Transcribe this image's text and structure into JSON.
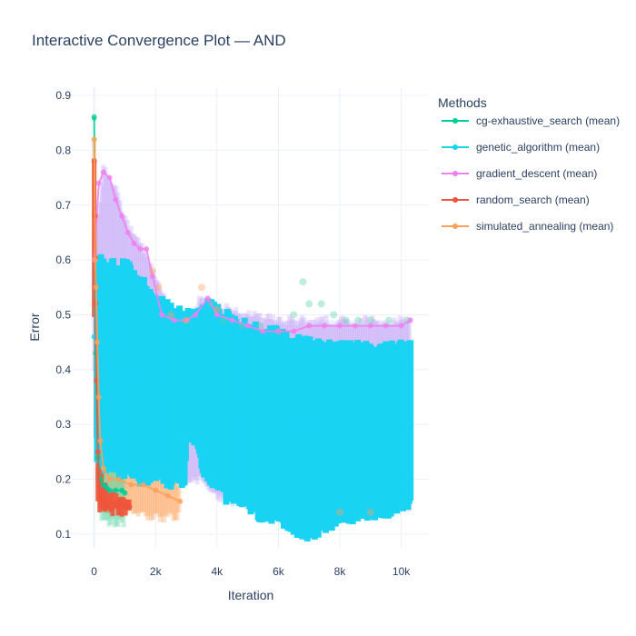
{
  "chart_data": {
    "type": "line",
    "title": "Interactive Convergence Plot — AND",
    "xlabel": "Iteration",
    "ylabel": "Error",
    "xlim": [
      -700,
      10900
    ],
    "ylim": [
      0.075,
      0.915
    ],
    "x_ticks": [
      0,
      2000,
      4000,
      6000,
      8000,
      10000
    ],
    "x_tick_labels": [
      "0",
      "2k",
      "4k",
      "6k",
      "8k",
      "10k"
    ],
    "y_ticks": [
      0.1,
      0.2,
      0.3,
      0.4,
      0.5,
      0.6,
      0.7,
      0.8,
      0.9
    ],
    "y_tick_labels": [
      "0.1",
      "0.2",
      "0.3",
      "0.4",
      "0.5",
      "0.6",
      "0.7",
      "0.8",
      "0.9"
    ],
    "grid": true,
    "legend_title": "Methods",
    "legend_position": "right",
    "series": [
      {
        "name": "cg-exhaustive_search (mean)",
        "color": "#00cc96",
        "band_color": "#5fd3a7",
        "points": [
          [
            0,
            0.86
          ],
          [
            50,
            0.43
          ],
          [
            120,
            0.24
          ],
          [
            200,
            0.2
          ],
          [
            300,
            0.19
          ],
          [
            400,
            0.185
          ],
          [
            500,
            0.18
          ],
          [
            700,
            0.18
          ],
          [
            900,
            0.18
          ],
          [
            1000,
            0.175
          ]
        ],
        "band": [
          [
            0,
            0.86,
            0.86
          ],
          [
            50,
            0.4,
            0.5
          ],
          [
            120,
            0.18,
            0.3
          ],
          [
            200,
            0.13,
            0.25
          ],
          [
            300,
            0.12,
            0.24
          ],
          [
            500,
            0.12,
            0.24
          ],
          [
            700,
            0.12,
            0.23
          ],
          [
            1000,
            0.12,
            0.22
          ]
        ],
        "late_points": [
          [
            3800,
            0.52
          ],
          [
            4200,
            0.49
          ],
          [
            4800,
            0.48
          ],
          [
            5400,
            0.48
          ],
          [
            6000,
            0.47
          ],
          [
            6500,
            0.5
          ],
          [
            6800,
            0.56
          ],
          [
            7000,
            0.52
          ],
          [
            7400,
            0.52
          ],
          [
            7800,
            0.5
          ],
          [
            8200,
            0.49
          ],
          [
            8600,
            0.49
          ],
          [
            9000,
            0.49
          ],
          [
            9600,
            0.49
          ],
          [
            10200,
            0.49
          ]
        ]
      },
      {
        "name": "genetic_algorithm (mean)",
        "color": "#19d3f3",
        "band_color": "#19d3f3",
        "points": [
          [
            0,
            0.46
          ],
          [
            100,
            0.45
          ],
          [
            300,
            0.44
          ],
          [
            600,
            0.42
          ],
          [
            1000,
            0.4
          ],
          [
            1500,
            0.38
          ],
          [
            2000,
            0.37
          ],
          [
            2500,
            0.35
          ],
          [
            3000,
            0.34
          ],
          [
            3500,
            0.34
          ],
          [
            4000,
            0.34
          ],
          [
            4500,
            0.33
          ],
          [
            5000,
            0.32
          ],
          [
            5500,
            0.32
          ],
          [
            6000,
            0.31
          ],
          [
            6500,
            0.3
          ],
          [
            7000,
            0.3
          ],
          [
            7500,
            0.3
          ],
          [
            8000,
            0.3
          ],
          [
            8500,
            0.3
          ],
          [
            9000,
            0.3
          ],
          [
            9500,
            0.3
          ],
          [
            10000,
            0.3
          ],
          [
            10300,
            0.3
          ]
        ],
        "band": [
          [
            100,
            0.23,
            0.6
          ],
          [
            500,
            0.22,
            0.59
          ],
          [
            1000,
            0.21,
            0.59
          ],
          [
            1500,
            0.2,
            0.57
          ],
          [
            1900,
            0.2,
            0.53
          ],
          [
            2500,
            0.19,
            0.51
          ],
          [
            2950,
            0.2,
            0.5
          ],
          [
            3000,
            0.27,
            0.5
          ],
          [
            3400,
            0.27,
            0.5
          ],
          [
            3500,
            0.22,
            0.5
          ],
          [
            3800,
            0.2,
            0.53
          ],
          [
            4200,
            0.17,
            0.5
          ],
          [
            5000,
            0.15,
            0.48
          ],
          [
            5500,
            0.13,
            0.47
          ],
          [
            6000,
            0.12,
            0.47
          ],
          [
            6500,
            0.11,
            0.45
          ],
          [
            7000,
            0.1,
            0.45
          ],
          [
            7500,
            0.11,
            0.44
          ],
          [
            8000,
            0.13,
            0.44
          ],
          [
            8500,
            0.13,
            0.44
          ],
          [
            9000,
            0.14,
            0.44
          ],
          [
            9500,
            0.14,
            0.44
          ],
          [
            10000,
            0.15,
            0.44
          ],
          [
            10300,
            0.15,
            0.44
          ]
        ]
      },
      {
        "name": "gradient_descent (mean)",
        "color": "#ef7ff0",
        "band_color": "#c9a7f5",
        "points": [
          [
            0,
            0.6
          ],
          [
            150,
            0.74
          ],
          [
            300,
            0.76
          ],
          [
            500,
            0.75
          ],
          [
            700,
            0.71
          ],
          [
            900,
            0.68
          ],
          [
            1100,
            0.65
          ],
          [
            1300,
            0.63
          ],
          [
            1500,
            0.62
          ],
          [
            1700,
            0.62
          ],
          [
            1900,
            0.57
          ],
          [
            2200,
            0.5
          ],
          [
            2600,
            0.49
          ],
          [
            3000,
            0.49
          ],
          [
            3300,
            0.5
          ],
          [
            3700,
            0.53
          ],
          [
            4000,
            0.5
          ],
          [
            4500,
            0.49
          ],
          [
            5000,
            0.48
          ],
          [
            5500,
            0.47
          ],
          [
            6000,
            0.47
          ],
          [
            6500,
            0.47
          ],
          [
            7000,
            0.48
          ],
          [
            7500,
            0.48
          ],
          [
            8000,
            0.48
          ],
          [
            8500,
            0.48
          ],
          [
            9000,
            0.48
          ],
          [
            9500,
            0.48
          ],
          [
            10000,
            0.48
          ],
          [
            10300,
            0.49
          ]
        ],
        "band": [
          [
            0,
            0.4,
            0.62
          ],
          [
            300,
            0.55,
            0.77
          ],
          [
            700,
            0.5,
            0.73
          ],
          [
            1100,
            0.48,
            0.66
          ],
          [
            1500,
            0.47,
            0.63
          ],
          [
            2000,
            0.35,
            0.57
          ],
          [
            2500,
            0.25,
            0.5
          ],
          [
            3000,
            0.2,
            0.5
          ],
          [
            3500,
            0.2,
            0.53
          ],
          [
            4000,
            0.17,
            0.52
          ],
          [
            5000,
            0.15,
            0.5
          ],
          [
            6000,
            0.15,
            0.49
          ],
          [
            7000,
            0.15,
            0.49
          ],
          [
            8000,
            0.15,
            0.49
          ],
          [
            9000,
            0.15,
            0.49
          ],
          [
            10300,
            0.15,
            0.49
          ]
        ]
      },
      {
        "name": "random_search (mean)",
        "color": "#ef553b",
        "band_color": "#ef553b",
        "points": [
          [
            0,
            0.78
          ],
          [
            25,
            0.68
          ],
          [
            50,
            0.52
          ],
          [
            80,
            0.38
          ],
          [
            120,
            0.25
          ],
          [
            180,
            0.18
          ],
          [
            250,
            0.16
          ],
          [
            400,
            0.15
          ],
          [
            600,
            0.15
          ],
          [
            800,
            0.15
          ],
          [
            1000,
            0.15
          ],
          [
            1150,
            0.15
          ]
        ],
        "band": [
          [
            0,
            0.5,
            0.78
          ],
          [
            50,
            0.3,
            0.65
          ],
          [
            120,
            0.15,
            0.35
          ],
          [
            250,
            0.14,
            0.2
          ],
          [
            500,
            0.14,
            0.17
          ],
          [
            1150,
            0.14,
            0.16
          ]
        ]
      },
      {
        "name": "simulated_annealing (mean)",
        "color": "#fea05a",
        "band_color": "#fea05a",
        "points": [
          [
            0,
            0.82
          ],
          [
            30,
            0.6
          ],
          [
            60,
            0.55
          ],
          [
            100,
            0.45
          ],
          [
            150,
            0.35
          ],
          [
            200,
            0.27
          ],
          [
            300,
            0.22
          ],
          [
            500,
            0.2
          ],
          [
            800,
            0.2
          ],
          [
            1200,
            0.19
          ],
          [
            1600,
            0.19
          ],
          [
            2000,
            0.18
          ],
          [
            2400,
            0.17
          ],
          [
            2800,
            0.16
          ]
        ],
        "band": [
          [
            0,
            0.6,
            0.82
          ],
          [
            100,
            0.2,
            0.6
          ],
          [
            200,
            0.16,
            0.4
          ],
          [
            400,
            0.14,
            0.3
          ],
          [
            800,
            0.14,
            0.25
          ],
          [
            1500,
            0.14,
            0.22
          ],
          [
            2000,
            0.13,
            0.21
          ],
          [
            2800,
            0.13,
            0.19
          ]
        ],
        "late_points": [
          [
            1900,
            0.58
          ],
          [
            2100,
            0.55
          ],
          [
            2500,
            0.5
          ],
          [
            3000,
            0.49
          ],
          [
            3500,
            0.55
          ],
          [
            4000,
            0.51
          ],
          [
            8000,
            0.14
          ],
          [
            9000,
            0.14
          ]
        ]
      }
    ]
  }
}
